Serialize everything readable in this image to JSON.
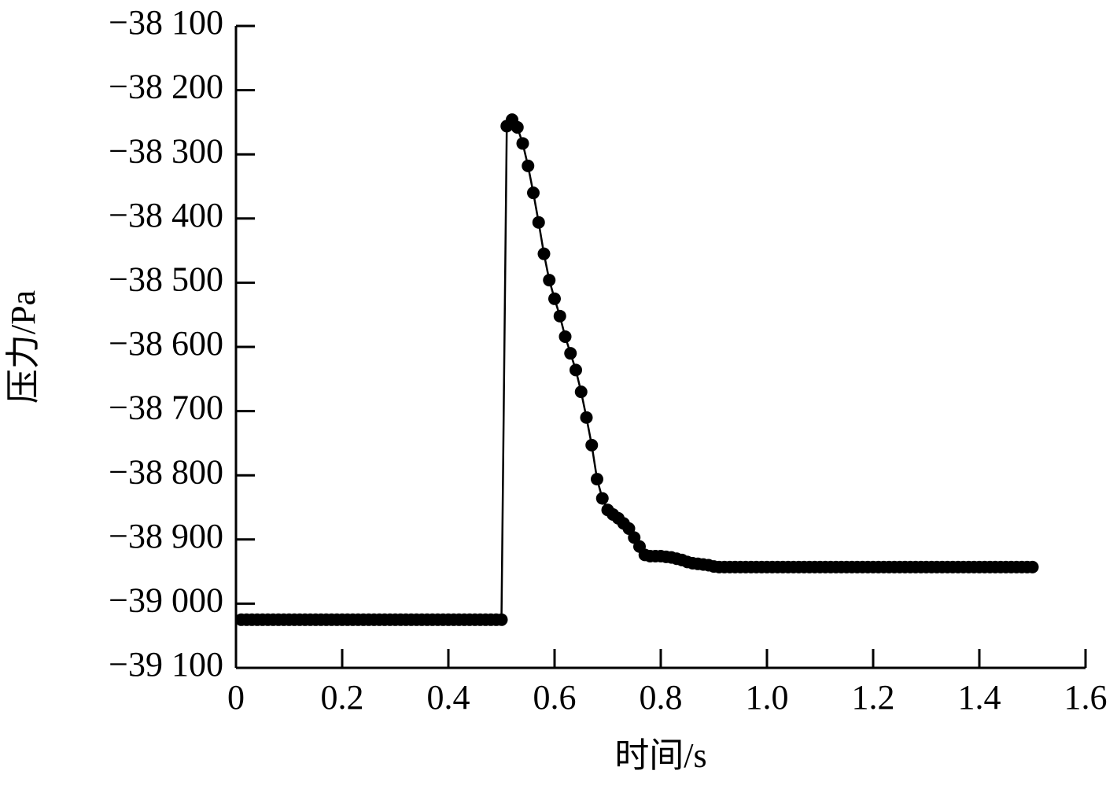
{
  "chart_data": {
    "type": "line",
    "xlabel": "时间/s",
    "ylabel": "压力/Pa",
    "xlim": [
      0,
      1.6
    ],
    "xticks": [
      0,
      0.2,
      0.4,
      0.6,
      0.8,
      {
        "value": 1,
        "label": "1.0"
      },
      1.2,
      1.4,
      1.6
    ],
    "ylim": [
      -39100,
      -38100
    ],
    "yticks": [
      {
        "value": -39100,
        "label": "−39 100"
      },
      {
        "value": -39000,
        "label": "−39 000"
      },
      {
        "value": -38900,
        "label": "−38 900"
      },
      {
        "value": -38800,
        "label": "−38 800"
      },
      {
        "value": -38700,
        "label": "−38 700"
      },
      {
        "value": -38600,
        "label": "−38 600"
      },
      {
        "value": -38500,
        "label": "−38 500"
      },
      {
        "value": -38400,
        "label": "−38 400"
      },
      {
        "value": -38300,
        "label": "−38 300"
      },
      {
        "value": -38200,
        "label": "−38 200"
      },
      {
        "value": -38100,
        "label": "−38 100"
      }
    ],
    "grid": false,
    "x": [
      0.01,
      0.02,
      0.03,
      0.04,
      0.05,
      0.06,
      0.07,
      0.08,
      0.09,
      0.1,
      0.11,
      0.12,
      0.13,
      0.14,
      0.15,
      0.16,
      0.17,
      0.18,
      0.19,
      0.2,
      0.21,
      0.22,
      0.23,
      0.24,
      0.25,
      0.26,
      0.27,
      0.28,
      0.29,
      0.3,
      0.31,
      0.32,
      0.33,
      0.34,
      0.35,
      0.36,
      0.37,
      0.38,
      0.39,
      0.4,
      0.41,
      0.42,
      0.43,
      0.44,
      0.45,
      0.46,
      0.47,
      0.48,
      0.49,
      0.5,
      0.51,
      0.52,
      0.53,
      0.54,
      0.55,
      0.56,
      0.57,
      0.58,
      0.59,
      0.6,
      0.61,
      0.62,
      0.63,
      0.64,
      0.65,
      0.66,
      0.67,
      0.68,
      0.69,
      0.7,
      0.71,
      0.72,
      0.73,
      0.74,
      0.75,
      0.76,
      0.77,
      0.78,
      0.79,
      0.8,
      0.81,
      0.82,
      0.83,
      0.84,
      0.85,
      0.86,
      0.87,
      0.88,
      0.89,
      0.9,
      0.91,
      0.92,
      0.93,
      0.94,
      0.95,
      0.96,
      0.97,
      0.98,
      0.99,
      1.0,
      1.01,
      1.02,
      1.03,
      1.04,
      1.05,
      1.06,
      1.07,
      1.08,
      1.09,
      1.1,
      1.11,
      1.12,
      1.13,
      1.14,
      1.15,
      1.16,
      1.17,
      1.18,
      1.19,
      1.2,
      1.21,
      1.22,
      1.23,
      1.24,
      1.25,
      1.26,
      1.27,
      1.28,
      1.29,
      1.3,
      1.31,
      1.32,
      1.33,
      1.34,
      1.35,
      1.36,
      1.37,
      1.38,
      1.39,
      1.4,
      1.41,
      1.42,
      1.43,
      1.44,
      1.45,
      1.46,
      1.47,
      1.48,
      1.49,
      1.5
    ],
    "series": [
      {
        "color": "#000000",
        "values": [
          -39025,
          -39025,
          -39025,
          -39025,
          -39025,
          -39025,
          -39025,
          -39025,
          -39025,
          -39025,
          -39025,
          -39025,
          -39025,
          -39025,
          -39025,
          -39025,
          -39025,
          -39025,
          -39025,
          -39025,
          -39025,
          -39025,
          -39025,
          -39025,
          -39025,
          -39025,
          -39025,
          -39025,
          -39025,
          -39025,
          -39025,
          -39025,
          -39025,
          -39025,
          -39025,
          -39025,
          -39025,
          -39025,
          -39025,
          -39025,
          -39025,
          -39025,
          -39025,
          -39025,
          -39025,
          -39025,
          -39025,
          -39025,
          -39025,
          -39025,
          -38256,
          -38246,
          -38258,
          -38283,
          -38318,
          -38360,
          -38406,
          -38455,
          -38496,
          -38525,
          -38552,
          -38584,
          -38610,
          -38636,
          -38670,
          -38710,
          -38753,
          -38806,
          -38836,
          -38854,
          -38861,
          -38867,
          -38875,
          -38883,
          -38897,
          -38911,
          -38924,
          -38926,
          -38926,
          -38926,
          -38927,
          -38928,
          -38930,
          -38932,
          -38935,
          -38937,
          -38938,
          -38939,
          -38940,
          -38942,
          -38943,
          -38943,
          -38943,
          -38943,
          -38943,
          -38943,
          -38943,
          -38943,
          -38943,
          -38943,
          -38943,
          -38943,
          -38943,
          -38943,
          -38943,
          -38943,
          -38943,
          -38943,
          -38943,
          -38943,
          -38943,
          -38943,
          -38943,
          -38943,
          -38943,
          -38943,
          -38943,
          -38943,
          -38943,
          -38943,
          -38943,
          -38943,
          -38943,
          -38943,
          -38943,
          -38943,
          -38943,
          -38943,
          -38943,
          -38943,
          -38943,
          -38943,
          -38943,
          -38943,
          -38943,
          -38943,
          -38943,
          -38943,
          -38943,
          -38943,
          -38943,
          -38943,
          -38943,
          -38943,
          -38943,
          -38943,
          -38943,
          -38943,
          -38943,
          -38943
        ]
      }
    ]
  }
}
